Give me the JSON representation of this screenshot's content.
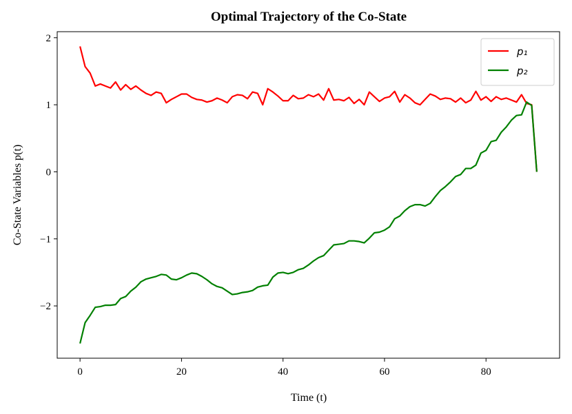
{
  "chart_data": {
    "type": "line",
    "title": "Optimal Trajectory of the Co-State",
    "xlabel": "Time (t)",
    "ylabel": "Co-State Variables p(t)",
    "x": [
      0,
      1,
      2,
      3,
      4,
      5,
      6,
      7,
      8,
      9,
      10,
      11,
      12,
      13,
      14,
      15,
      16,
      17,
      18,
      19,
      20,
      21,
      22,
      23,
      24,
      25,
      26,
      27,
      28,
      29,
      30,
      31,
      32,
      33,
      34,
      35,
      36,
      37,
      38,
      39,
      40,
      41,
      42,
      43,
      44,
      45,
      46,
      47,
      48,
      49,
      50,
      51,
      52,
      53,
      54,
      55,
      56,
      57,
      58,
      59,
      60,
      61,
      62,
      63,
      64,
      65,
      66,
      67,
      68,
      69,
      70,
      71,
      72,
      73,
      74,
      75,
      76,
      77,
      78,
      79,
      80,
      81,
      82,
      83,
      84,
      85,
      86,
      87,
      88,
      89,
      90
    ],
    "series": [
      {
        "name": "p₁",
        "color": "#ff0000",
        "values": [
          1.87,
          1.57,
          1.47,
          1.28,
          1.31,
          1.28,
          1.25,
          1.34,
          1.22,
          1.3,
          1.23,
          1.28,
          1.22,
          1.17,
          1.14,
          1.19,
          1.17,
          1.03,
          1.08,
          1.12,
          1.16,
          1.16,
          1.11,
          1.08,
          1.07,
          1.04,
          1.06,
          1.1,
          1.07,
          1.03,
          1.12,
          1.15,
          1.14,
          1.09,
          1.19,
          1.17,
          1.0,
          1.24,
          1.19,
          1.13,
          1.06,
          1.06,
          1.14,
          1.09,
          1.1,
          1.15,
          1.12,
          1.16,
          1.07,
          1.24,
          1.07,
          1.08,
          1.06,
          1.11,
          1.02,
          1.08,
          1.0,
          1.19,
          1.12,
          1.05,
          1.1,
          1.12,
          1.2,
          1.04,
          1.15,
          1.1,
          1.03,
          1.0,
          1.08,
          1.16,
          1.13,
          1.08,
          1.1,
          1.09,
          1.04,
          1.1,
          1.03,
          1.07,
          1.2,
          1.07,
          1.12,
          1.05,
          1.12,
          1.08,
          1.1,
          1.07,
          1.04,
          1.15,
          1.02,
          1.0,
          0
        ]
      },
      {
        "name": "p₂",
        "color": "#008000",
        "values": [
          -2.56,
          -2.25,
          -2.14,
          -2.02,
          -2.01,
          -1.99,
          -1.99,
          -1.98,
          -1.89,
          -1.86,
          -1.78,
          -1.72,
          -1.64,
          -1.6,
          -1.58,
          -1.56,
          -1.53,
          -1.54,
          -1.6,
          -1.61,
          -1.58,
          -1.54,
          -1.51,
          -1.52,
          -1.56,
          -1.61,
          -1.67,
          -1.71,
          -1.73,
          -1.78,
          -1.83,
          -1.82,
          -1.8,
          -1.79,
          -1.77,
          -1.72,
          -1.7,
          -1.69,
          -1.57,
          -1.51,
          -1.5,
          -1.52,
          -1.5,
          -1.46,
          -1.44,
          -1.39,
          -1.33,
          -1.28,
          -1.25,
          -1.17,
          -1.09,
          -1.08,
          -1.07,
          -1.03,
          -1.03,
          -1.04,
          -1.06,
          -0.99,
          -0.91,
          -0.9,
          -0.87,
          -0.82,
          -0.7,
          -0.66,
          -0.58,
          -0.52,
          -0.49,
          -0.49,
          -0.51,
          -0.47,
          -0.37,
          -0.28,
          -0.22,
          -0.15,
          -0.07,
          -0.04,
          0.05,
          0.05,
          0.1,
          0.28,
          0.32,
          0.45,
          0.47,
          0.59,
          0.67,
          0.77,
          0.84,
          0.85,
          1.04,
          0.99,
          0
        ]
      }
    ],
    "xlim": [
      -4.5,
      94.5
    ],
    "ylim": [
      -2.78,
      2.09
    ],
    "xticks": [
      0,
      20,
      40,
      60,
      80
    ],
    "yticks": [
      {
        "value": -2,
        "label": "−2"
      },
      {
        "value": -1,
        "label": "−1"
      },
      0,
      1,
      2
    ],
    "grid": false,
    "legend": "upper right"
  }
}
